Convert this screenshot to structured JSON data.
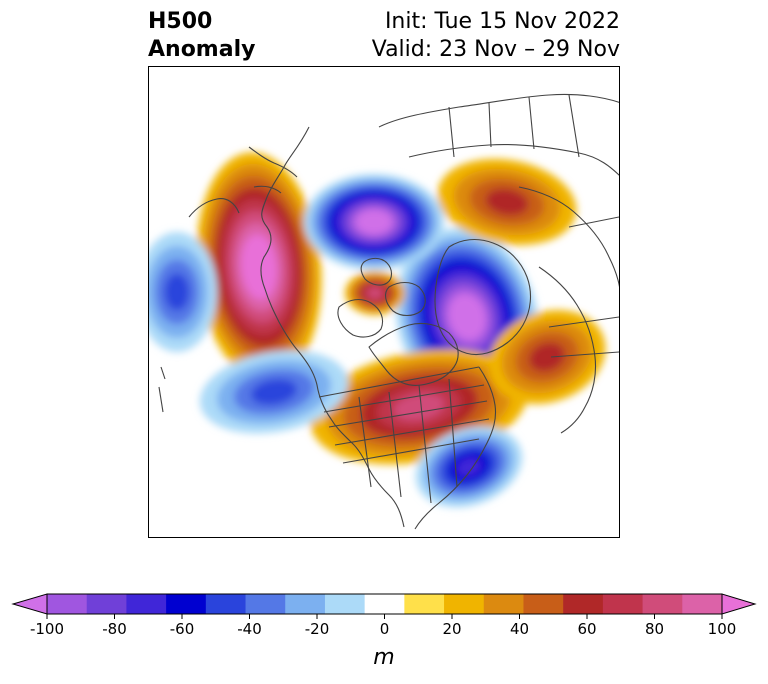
{
  "title": {
    "left_line1": "H500",
    "left_line2": "Anomaly",
    "init": "Init: Tue 15 Nov 2022",
    "valid": "Valid: 23 Nov – 29 Nov"
  },
  "colorbar": {
    "unit": "m",
    "tick_labels": [
      "-100",
      "-80",
      "-60",
      "-40",
      "-20",
      "0",
      "20",
      "40",
      "60",
      "80",
      "100"
    ],
    "colors": [
      "#d070e8",
      "#a056e0",
      "#7040d8",
      "#4026d8",
      "#0000d0",
      "#2a44dc",
      "#5478e6",
      "#7cb0f0",
      "#acdaf8",
      "#ffffff",
      "#ffe04a",
      "#f0b400",
      "#dc8a10",
      "#c85e18",
      "#b02828",
      "#c0344c",
      "#d04c7a",
      "#dc62a8",
      "#e870d8"
    ],
    "range": [
      -100,
      100
    ],
    "step": 10
  },
  "anomaly_centers": [
    {
      "name": "west-coast-ridge",
      "value": 95
    },
    {
      "name": "baffin-low",
      "value": -100
    },
    {
      "name": "arctic-low",
      "value": -100
    },
    {
      "name": "hudson-bay-ridge",
      "value": 65
    },
    {
      "name": "arctic-small-ridge",
      "value": 60
    },
    {
      "name": "siberia-ridge",
      "value": 45
    },
    {
      "name": "greenland-ridge",
      "value": 45
    },
    {
      "name": "pacific-trough",
      "value": -45
    },
    {
      "name": "gulf-alaska-trough",
      "value": -40
    },
    {
      "name": "atlantic-trough",
      "value": -60
    }
  ],
  "colors": {
    "coastline": "#444444",
    "border": "#000000"
  }
}
